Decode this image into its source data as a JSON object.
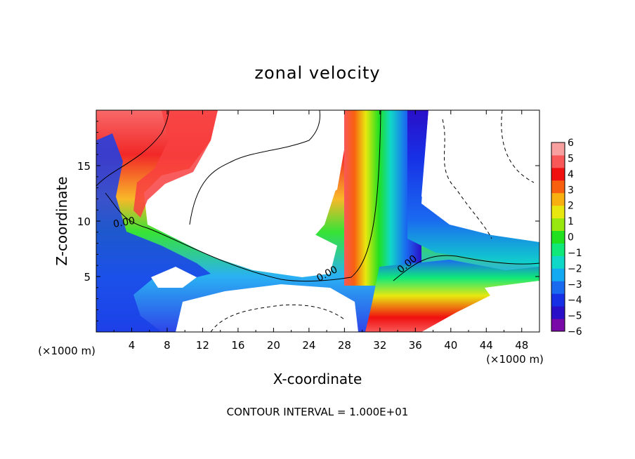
{
  "chart_data": {
    "type": "heatmap",
    "title": "zonal velocity",
    "xlabel": "X-coordinate",
    "ylabel": "Z-coordinate",
    "x_unit_label": "(×1000 m)",
    "y_unit_label": "(×1000 m)",
    "x_ticks": [
      4,
      8,
      12,
      16,
      20,
      24,
      28,
      32,
      36,
      40,
      44,
      48
    ],
    "y_ticks": [
      5,
      10,
      15
    ],
    "xlim": [
      0,
      50
    ],
    "ylim": [
      0,
      20
    ],
    "colorbar_ticks": [
      6,
      5,
      4,
      3,
      2,
      1,
      0,
      -1,
      -2,
      -3,
      -4,
      -5,
      -6
    ],
    "colorbar_range": [
      -6,
      6
    ],
    "colorbar_colors": [
      "#7a0aa8",
      "#2a0fc8",
      "#1730e6",
      "#1a6af0",
      "#12a8f2",
      "#10d8c8",
      "#10e87a",
      "#20e020",
      "#98e810",
      "#e8e810",
      "#f8b010",
      "#f86010",
      "#f01010",
      "#f85858",
      "#f8a0a0"
    ],
    "contour_labels": [
      {
        "text": "0.00",
        "x": 3.2,
        "y": 9.6,
        "angle": -10
      },
      {
        "text": "0.00",
        "x": 26.2,
        "y": 5.0,
        "angle": -28
      },
      {
        "text": "0.00",
        "x": 35.3,
        "y": 5.9,
        "angle": -40
      }
    ],
    "footer": "CONTOUR INTERVAL = 1.000E+01",
    "grid": false
  }
}
